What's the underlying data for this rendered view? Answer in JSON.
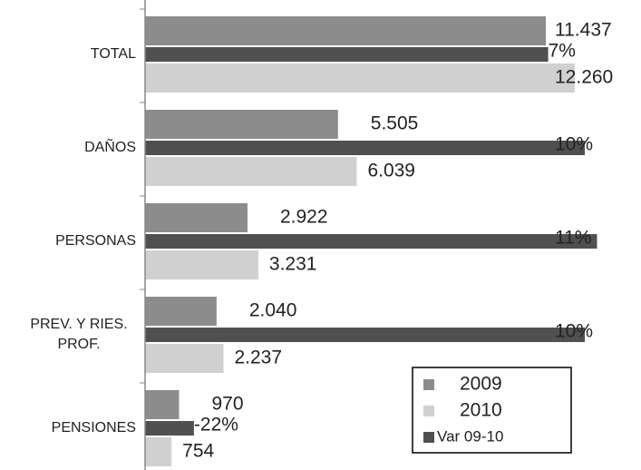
{
  "chart_data": {
    "type": "hbar",
    "categories": [
      "TOTAL",
      "DAÑOS",
      "PERSONAS",
      "PREV. Y RIES. PROF.",
      "PENSIONES"
    ],
    "series": [
      {
        "name": "2009",
        "color": "#8c8c8c",
        "values": [
          11437,
          5505,
          2922,
          2040,
          970
        ],
        "value_labels": [
          "11.437",
          "5.505",
          "2.922",
          "2.040",
          "970"
        ]
      },
      {
        "name": "Var 09-10",
        "color": "#505050",
        "axis": "x2",
        "values": [
          7,
          10,
          11,
          10,
          -22
        ],
        "value_labels": [
          "7%",
          "10%",
          "11%",
          "10%",
          "-22%"
        ]
      },
      {
        "name": "2010",
        "color": "#d0d0d0",
        "values": [
          12260,
          6039,
          3231,
          2237,
          754
        ],
        "value_labels": [
          "12.260",
          "6.039",
          "3.231",
          "2.237",
          "754"
        ]
      }
    ],
    "legend_order": [
      0,
      2,
      1
    ],
    "xlim": [
      0,
      14150
    ],
    "x2lim": [
      -26,
      14.6
    ]
  }
}
